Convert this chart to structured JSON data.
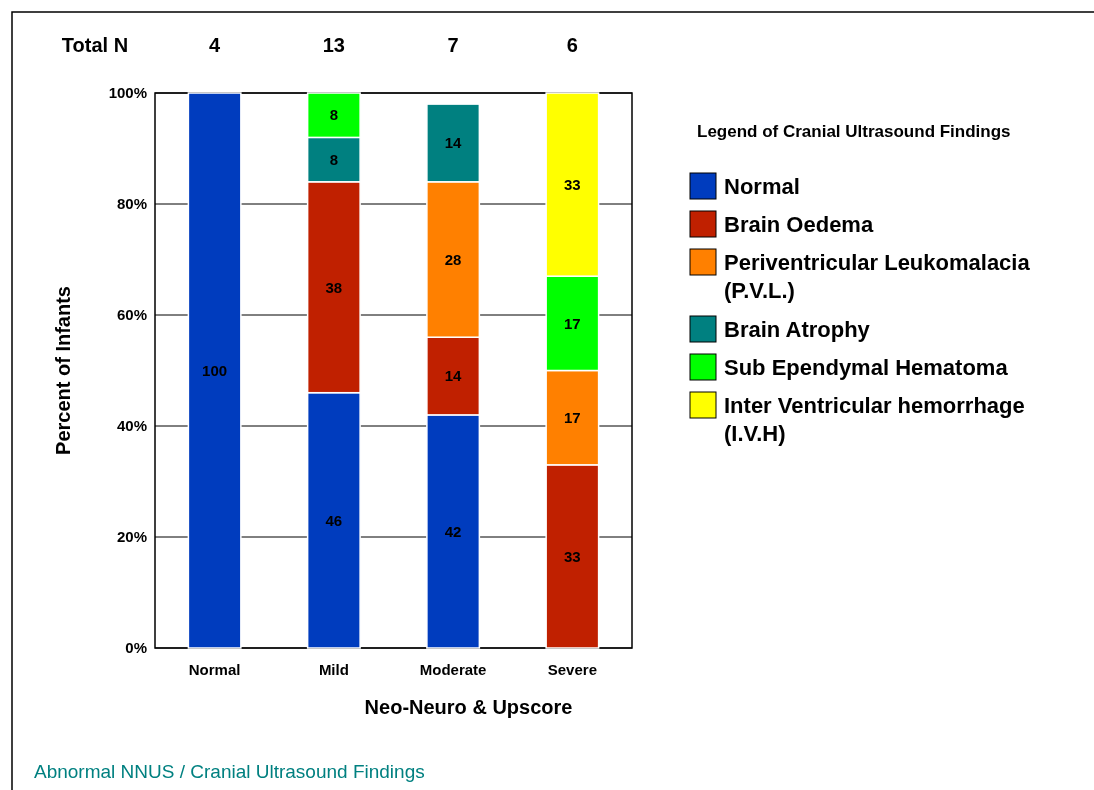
{
  "chart_data": {
    "type": "bar",
    "stacked": true,
    "xlabel": "Neo-Neuro & Upscore",
    "ylabel": "Percent of Infants",
    "legend_title": "Legend of Cranial Ultrasound Findings",
    "legend": "right",
    "grid": "y",
    "data_labels": true,
    "categories": [
      "Normal",
      "Mild",
      "Moderate",
      "Severe"
    ],
    "ylim": [
      0,
      100
    ],
    "yticks": [
      {
        "value": 0,
        "label": "0%"
      },
      {
        "value": 20,
        "label": "20%"
      },
      {
        "value": 40,
        "label": "40%"
      },
      {
        "value": 60,
        "label": "60%"
      },
      {
        "value": 80,
        "label": "80%"
      },
      {
        "value": 100,
        "label": "100%"
      }
    ],
    "series": [
      {
        "name": "Normal",
        "color": "#003cbe",
        "values": [
          100,
          46,
          42,
          null
        ]
      },
      {
        "name": "Brain Oedema",
        "color": "#c02000",
        "values": [
          null,
          38,
          14,
          33
        ]
      },
      {
        "name": "Periventricular Leukomalacia (P.V.L.)",
        "color": "#ff8000",
        "values": [
          null,
          null,
          28,
          17
        ]
      },
      {
        "name": "Brain Atrophy",
        "color": "#008080",
        "values": [
          null,
          8,
          14,
          null
        ]
      },
      {
        "name": "Sub Ependymal Hematoma",
        "color": "#00ff00",
        "values": [
          null,
          8,
          null,
          17
        ]
      },
      {
        "name": "Inter Ventricular hemorrhage (I.V.H)",
        "color": "#ffff00",
        "values": [
          null,
          null,
          null,
          33
        ]
      }
    ],
    "annotations": [
      "Total N",
      "4",
      "13",
      "7",
      "6",
      "Abnormal NNUS / Cranial Ultrasound Findings"
    ]
  }
}
